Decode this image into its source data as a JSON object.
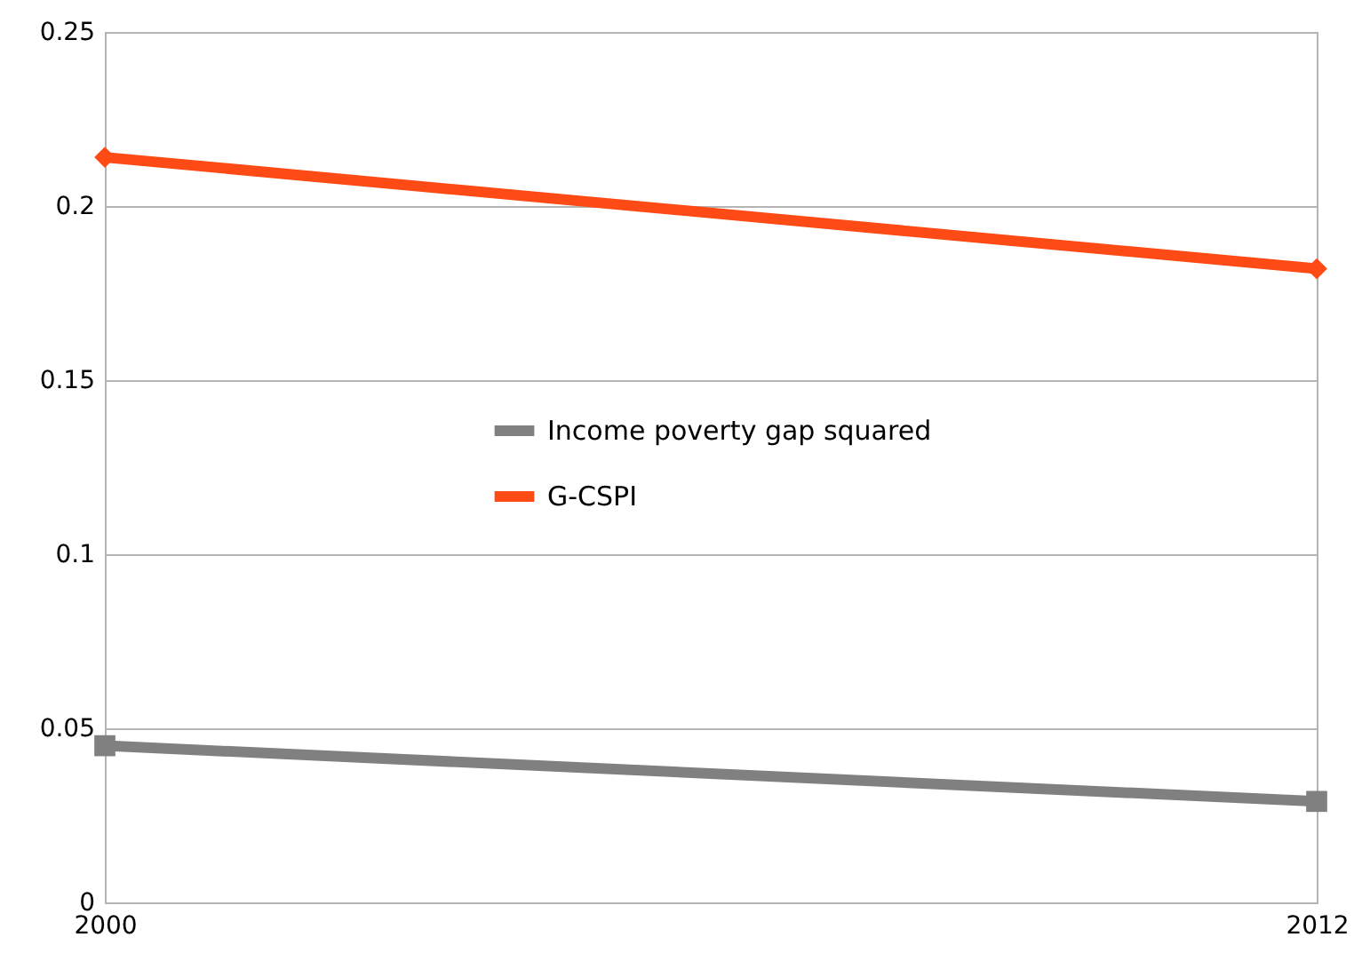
{
  "chart_data": {
    "type": "line",
    "x": [
      2000,
      2012
    ],
    "xlim": [
      2000,
      2012
    ],
    "xticks": [
      2000,
      2012
    ],
    "ylim": [
      0,
      0.25
    ],
    "yticks": [
      0,
      0.05,
      0.1,
      0.15,
      0.2,
      0.25
    ],
    "grid": "y",
    "legend": "center",
    "series": [
      {
        "name": "Income poverty gap squared",
        "color": "#808080",
        "marker": "square",
        "values": [
          0.045,
          0.029
        ]
      },
      {
        "name": "G-CSPI",
        "color": "#fe4a14",
        "marker": "diamond",
        "values": [
          0.214,
          0.182
        ]
      }
    ]
  }
}
